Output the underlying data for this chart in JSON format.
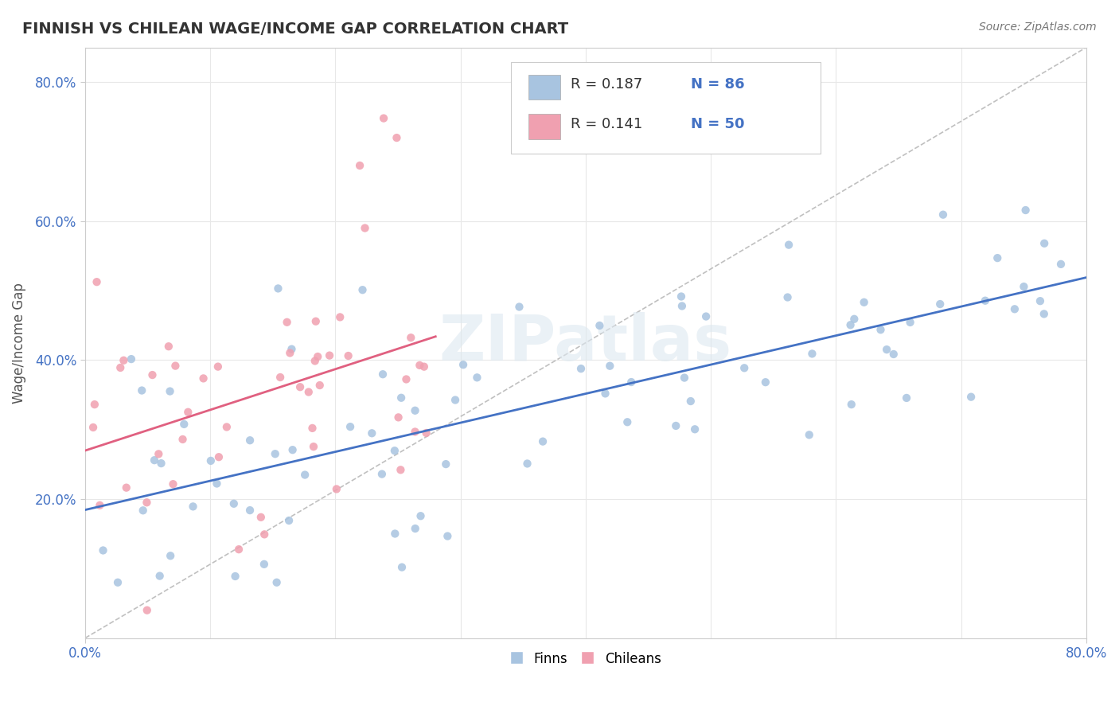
{
  "title": "FINNISH VS CHILEAN WAGE/INCOME GAP CORRELATION CHART",
  "source": "Source: ZipAtlas.com",
  "ylabel": "Wage/Income Gap",
  "xlim": [
    0.0,
    0.8
  ],
  "ylim": [
    0.0,
    0.85
  ],
  "r_finn": 0.187,
  "n_finn": 86,
  "r_chile": 0.141,
  "n_chile": 50,
  "finn_color": "#a8c4e0",
  "chile_color": "#f0a0b0",
  "finn_line_color": "#4472c4",
  "chile_line_color": "#e06080",
  "ref_line_color": "#c0c0c0",
  "background_color": "#ffffff",
  "grid_color": "#e8e8e8",
  "tick_color": "#4472c4",
  "watermark": "ZIPatlas"
}
